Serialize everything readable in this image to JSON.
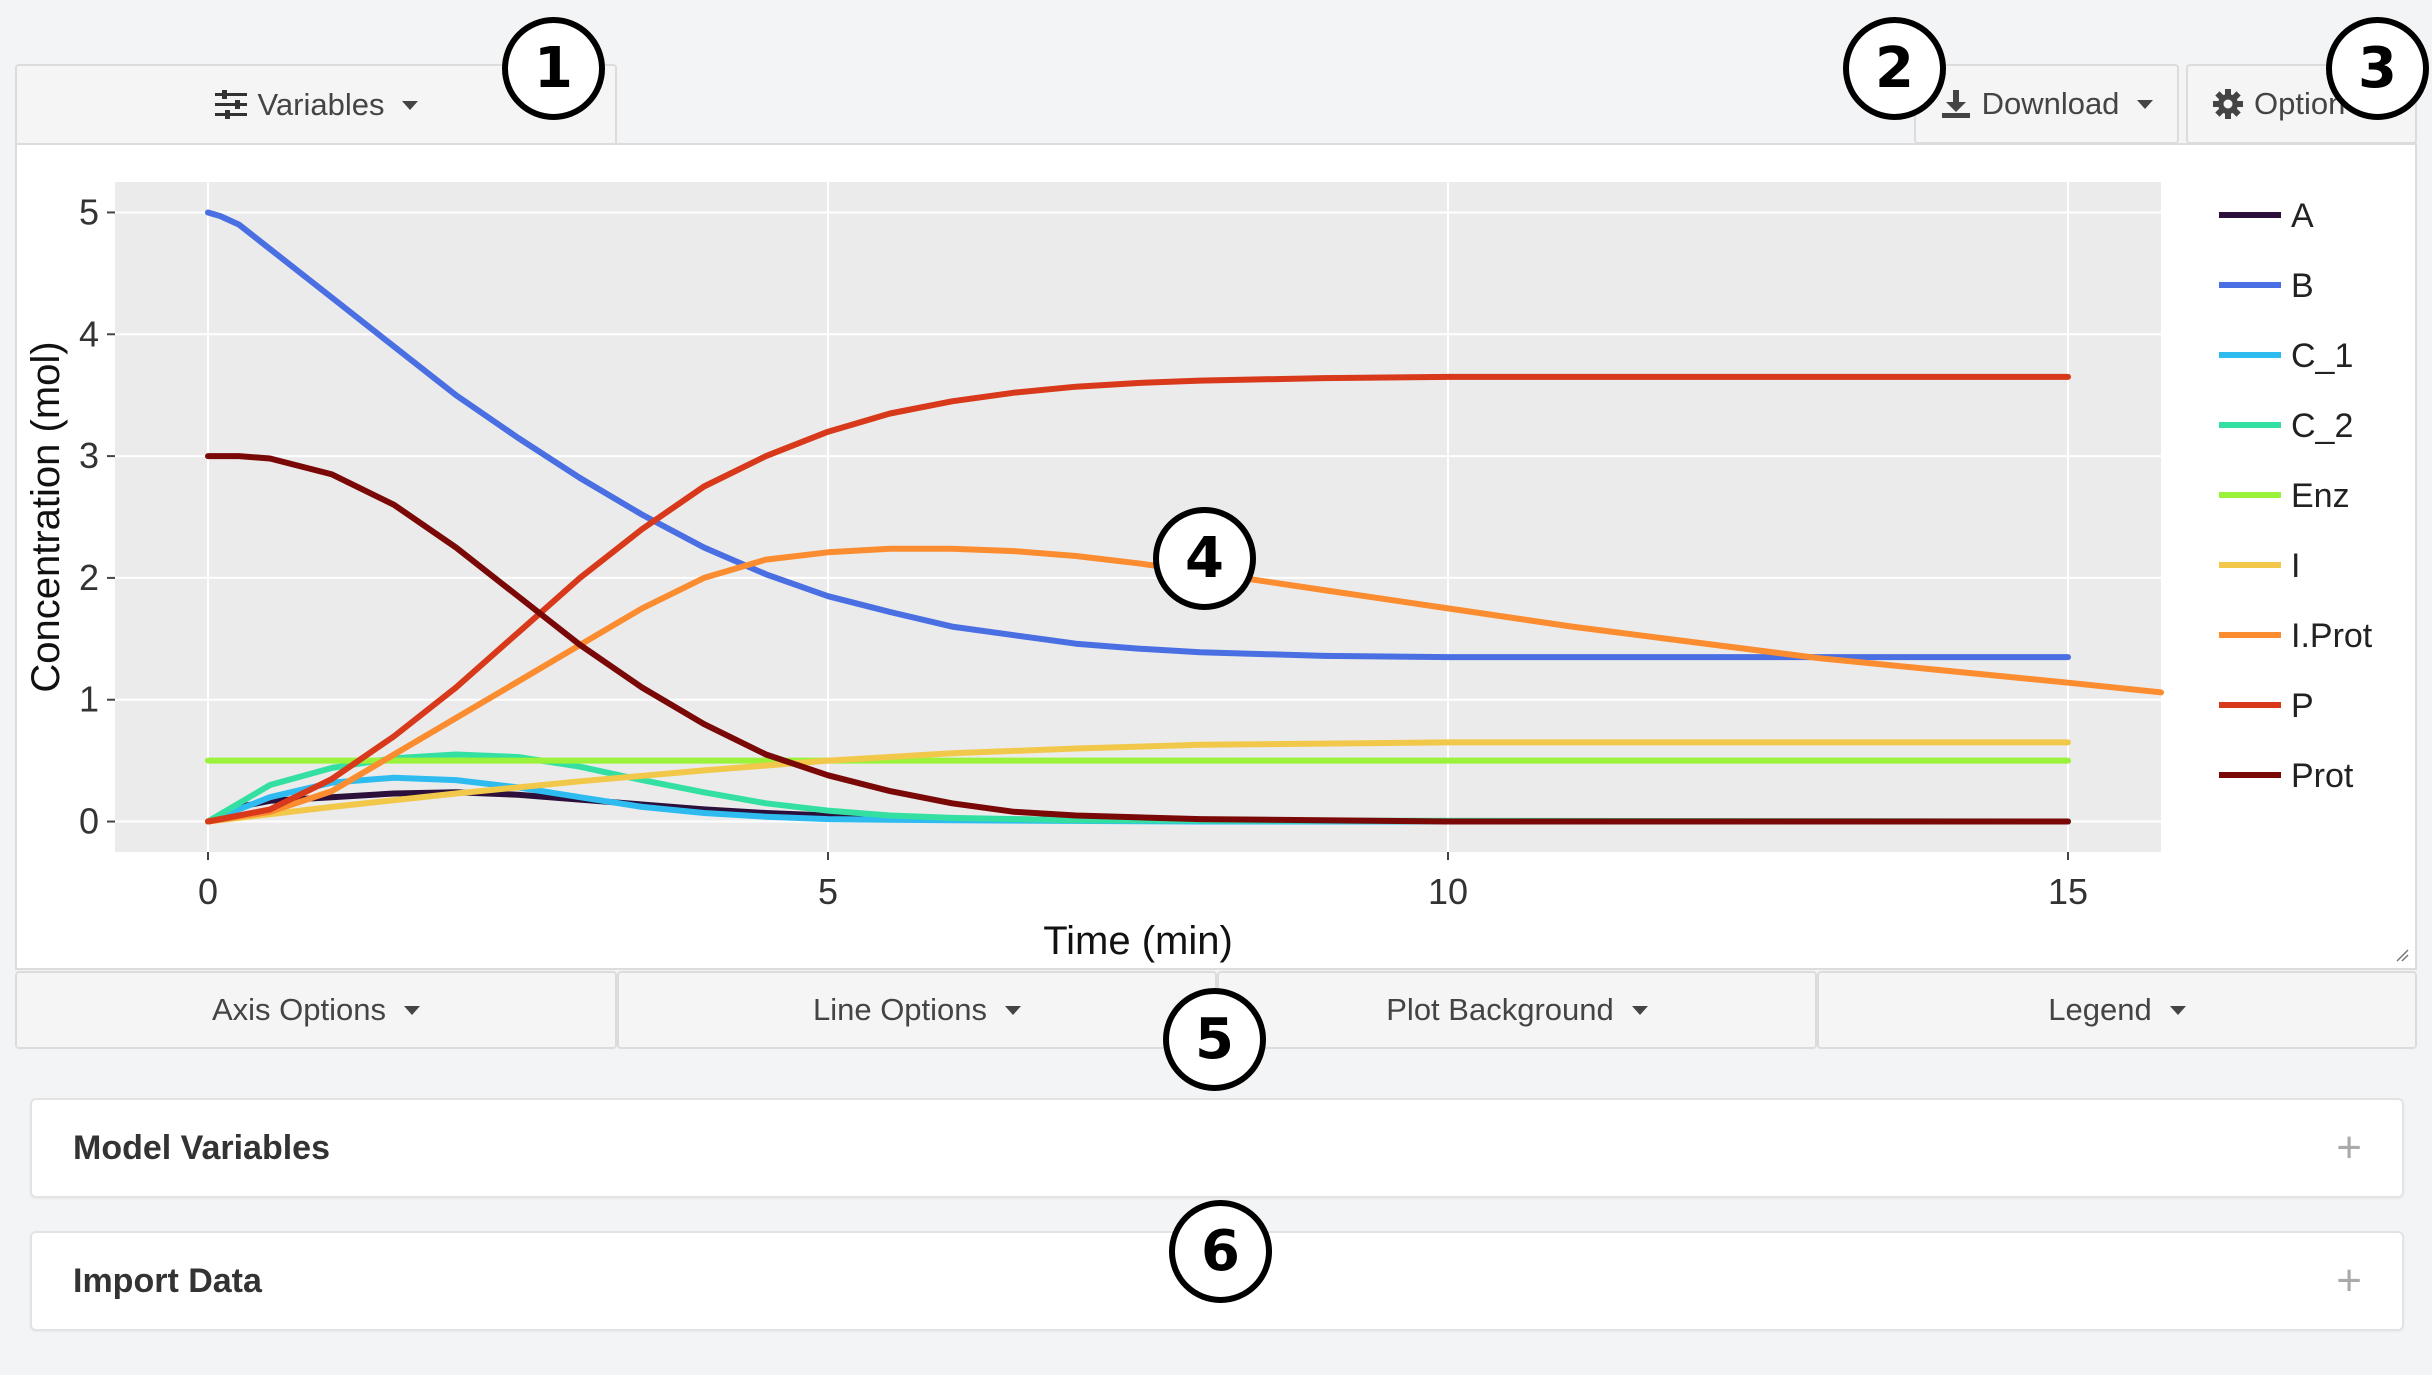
{
  "toolbar": {
    "variables_label": "Variables",
    "download_label": "Download",
    "options_label": "Option"
  },
  "plot_options": {
    "axis_options": "Axis Options",
    "line_options": "Line Options",
    "plot_background": "Plot Background",
    "legend": "Legend"
  },
  "panels": {
    "model_variables": "Model Variables",
    "import_data": "Import Data",
    "expand_symbol": "+"
  },
  "callouts": [
    "1",
    "2",
    "3",
    "4",
    "5",
    "6"
  ],
  "icons": {
    "variables": "sliders-icon",
    "download": "download-icon",
    "options": "gear-icon",
    "resize": "resize-handle-icon"
  },
  "chart_data": {
    "type": "line",
    "xlabel": "Time (min)",
    "ylabel": "Concentration (mol)",
    "xlim": [
      -0.75,
      15.75
    ],
    "ylim": [
      -0.25,
      5.25
    ],
    "xticks": [
      0,
      5,
      10,
      15
    ],
    "yticks": [
      0,
      1,
      2,
      3,
      4,
      5
    ],
    "grid": true,
    "plot_background": "#ebebeb",
    "legend_position": "right",
    "series": [
      {
        "name": "A",
        "color": "#2c0f3b",
        "points": [
          [
            0,
            0
          ],
          [
            0.25,
            0.12
          ],
          [
            0.5,
            0.17
          ],
          [
            1,
            0.2
          ],
          [
            1.5,
            0.23
          ],
          [
            2,
            0.24
          ],
          [
            2.5,
            0.22
          ],
          [
            3,
            0.18
          ],
          [
            3.5,
            0.14
          ],
          [
            4,
            0.1
          ],
          [
            4.5,
            0.07
          ],
          [
            5,
            0.05
          ],
          [
            6,
            0.02
          ],
          [
            8,
            0.01
          ],
          [
            10,
            0
          ],
          [
            15,
            0
          ]
        ]
      },
      {
        "name": "B",
        "color": "#4a6fe3",
        "points": [
          [
            0,
            5
          ],
          [
            0.1,
            4.97
          ],
          [
            0.25,
            4.9
          ],
          [
            0.5,
            4.7
          ],
          [
            1,
            4.3
          ],
          [
            1.5,
            3.9
          ],
          [
            2,
            3.5
          ],
          [
            2.5,
            3.15
          ],
          [
            3,
            2.82
          ],
          [
            3.5,
            2.52
          ],
          [
            4,
            2.25
          ],
          [
            4.5,
            2.03
          ],
          [
            5,
            1.85
          ],
          [
            5.5,
            1.72
          ],
          [
            6,
            1.6
          ],
          [
            6.5,
            1.53
          ],
          [
            7,
            1.46
          ],
          [
            7.5,
            1.42
          ],
          [
            8,
            1.39
          ],
          [
            9,
            1.36
          ],
          [
            10,
            1.35
          ],
          [
            11,
            1.35
          ],
          [
            13,
            1.35
          ],
          [
            15,
            1.35
          ]
        ]
      },
      {
        "name": "C_1",
        "color": "#2ebcf0",
        "points": [
          [
            0,
            0
          ],
          [
            0.5,
            0.2
          ],
          [
            1,
            0.32
          ],
          [
            1.5,
            0.36
          ],
          [
            2,
            0.34
          ],
          [
            2.5,
            0.28
          ],
          [
            3,
            0.2
          ],
          [
            3.5,
            0.12
          ],
          [
            4,
            0.07
          ],
          [
            4.5,
            0.04
          ],
          [
            5,
            0.02
          ],
          [
            6,
            0.01
          ],
          [
            8,
            0
          ],
          [
            15,
            0
          ]
        ]
      },
      {
        "name": "C_2",
        "color": "#34e0a1",
        "points": [
          [
            0,
            0
          ],
          [
            0.5,
            0.3
          ],
          [
            1,
            0.44
          ],
          [
            1.5,
            0.52
          ],
          [
            2,
            0.55
          ],
          [
            2.5,
            0.53
          ],
          [
            3,
            0.45
          ],
          [
            3.5,
            0.34
          ],
          [
            4,
            0.24
          ],
          [
            4.5,
            0.15
          ],
          [
            5,
            0.09
          ],
          [
            5.5,
            0.05
          ],
          [
            6,
            0.03
          ],
          [
            7,
            0.01
          ],
          [
            15,
            0
          ]
        ]
      },
      {
        "name": "Enz",
        "color": "#9af23b",
        "points": [
          [
            0,
            0.5
          ],
          [
            15,
            0.5
          ]
        ]
      },
      {
        "name": "I",
        "color": "#f2c84b",
        "points": [
          [
            0,
            0
          ],
          [
            1,
            0.12
          ],
          [
            2,
            0.23
          ],
          [
            3,
            0.33
          ],
          [
            4,
            0.42
          ],
          [
            5,
            0.5
          ],
          [
            6,
            0.56
          ],
          [
            7,
            0.6
          ],
          [
            8,
            0.63
          ],
          [
            9,
            0.64
          ],
          [
            10,
            0.65
          ],
          [
            12,
            0.65
          ],
          [
            15,
            0.65
          ]
        ]
      },
      {
        "name": "I.Prot",
        "color": "#fb8c2f",
        "points": [
          [
            0,
            0
          ],
          [
            0.5,
            0.08
          ],
          [
            1,
            0.25
          ],
          [
            1.5,
            0.55
          ],
          [
            2,
            0.85
          ],
          [
            2.5,
            1.15
          ],
          [
            3,
            1.45
          ],
          [
            3.5,
            1.75
          ],
          [
            4,
            2.0
          ],
          [
            4.5,
            2.15
          ],
          [
            5,
            2.21
          ],
          [
            5.5,
            2.24
          ],
          [
            6,
            2.24
          ],
          [
            6.5,
            2.22
          ],
          [
            7,
            2.18
          ],
          [
            7.5,
            2.12
          ],
          [
            8,
            2.05
          ],
          [
            9,
            1.9
          ],
          [
            10,
            1.75
          ],
          [
            11,
            1.6
          ],
          [
            12,
            1.47
          ],
          [
            13,
            1.34
          ],
          [
            14,
            1.24
          ],
          [
            15,
            1.14
          ],
          [
            15.75,
            1.06
          ]
        ]
      },
      {
        "name": "P",
        "color": "#d8391a",
        "points": [
          [
            0,
            0
          ],
          [
            0.5,
            0.1
          ],
          [
            1,
            0.35
          ],
          [
            1.5,
            0.7
          ],
          [
            2,
            1.1
          ],
          [
            2.5,
            1.55
          ],
          [
            3,
            2.0
          ],
          [
            3.5,
            2.4
          ],
          [
            4,
            2.75
          ],
          [
            4.5,
            3.0
          ],
          [
            5,
            3.2
          ],
          [
            5.5,
            3.35
          ],
          [
            6,
            3.45
          ],
          [
            6.5,
            3.52
          ],
          [
            7,
            3.57
          ],
          [
            7.5,
            3.6
          ],
          [
            8,
            3.62
          ],
          [
            9,
            3.64
          ],
          [
            10,
            3.65
          ],
          [
            12,
            3.65
          ],
          [
            15,
            3.65
          ]
        ]
      },
      {
        "name": "Prot",
        "color": "#7a0807",
        "points": [
          [
            0,
            3
          ],
          [
            0.25,
            3
          ],
          [
            0.5,
            2.98
          ],
          [
            1,
            2.85
          ],
          [
            1.5,
            2.6
          ],
          [
            2,
            2.25
          ],
          [
            2.5,
            1.85
          ],
          [
            3,
            1.45
          ],
          [
            3.5,
            1.1
          ],
          [
            4,
            0.8
          ],
          [
            4.5,
            0.55
          ],
          [
            5,
            0.38
          ],
          [
            5.5,
            0.25
          ],
          [
            6,
            0.15
          ],
          [
            6.5,
            0.08
          ],
          [
            7,
            0.05
          ],
          [
            8,
            0.02
          ],
          [
            10,
            0
          ],
          [
            15,
            0
          ]
        ]
      }
    ]
  }
}
